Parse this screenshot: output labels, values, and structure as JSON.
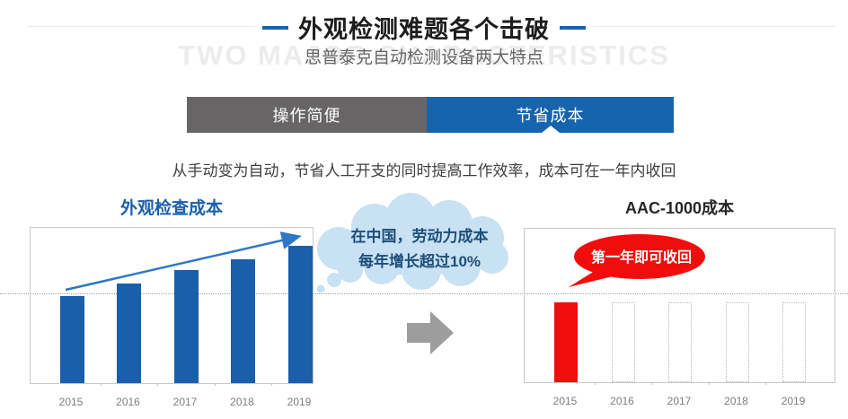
{
  "header": {
    "title": "外观检测难题各个击破",
    "watermark": "TWO MAJOR CHARACTERISTICS",
    "subtitle": "思普泰克自动检测设备两大特点",
    "accent_color": "#1764ae"
  },
  "tabs": [
    {
      "label": "操作简便",
      "active": false
    },
    {
      "label": "节省成本",
      "active": true
    }
  ],
  "description": "从手动变为自动，节省人工开支的同时提高工作效率，成本可在一年内收回",
  "transition_arrow_icon": "right-arrow",
  "chart_data": [
    {
      "type": "bar",
      "title": "外观检查成本",
      "title_color": "#1a5fa9",
      "categories": [
        "2015",
        "2016",
        "2017",
        "2018",
        "2019"
      ],
      "values": [
        98,
        112,
        127,
        140,
        155
      ],
      "ylim": [
        0,
        175
      ],
      "unit": "relative cost (no y-axis shown)",
      "bar_color": "#1a5fa9",
      "grid": false,
      "legend": "none",
      "annotations": {
        "trend_arrow": "rising diagonal arrow from 2015 bar top to 2019 bar top",
        "bubble_line1": "在中国，劳动力成本",
        "bubble_line2": "每年增长超过10%",
        "reference_line": "dotted horizontal line across page near 2015 bar level"
      }
    },
    {
      "type": "bar",
      "title": "AAC-1000成本",
      "title_color": "#262626",
      "categories": [
        "2015",
        "2016",
        "2017",
        "2018",
        "2019"
      ],
      "values": [
        90,
        90,
        90,
        90,
        90
      ],
      "ylim": [
        0,
        173
      ],
      "unit": "relative cost (no y-axis shown)",
      "bar_color": "#f20d0d",
      "bar_styles": [
        "solid",
        "outline",
        "outline",
        "outline",
        "outline"
      ],
      "grid": false,
      "legend": "none",
      "annotations": {
        "bubble": "第一年即可收回"
      }
    }
  ]
}
